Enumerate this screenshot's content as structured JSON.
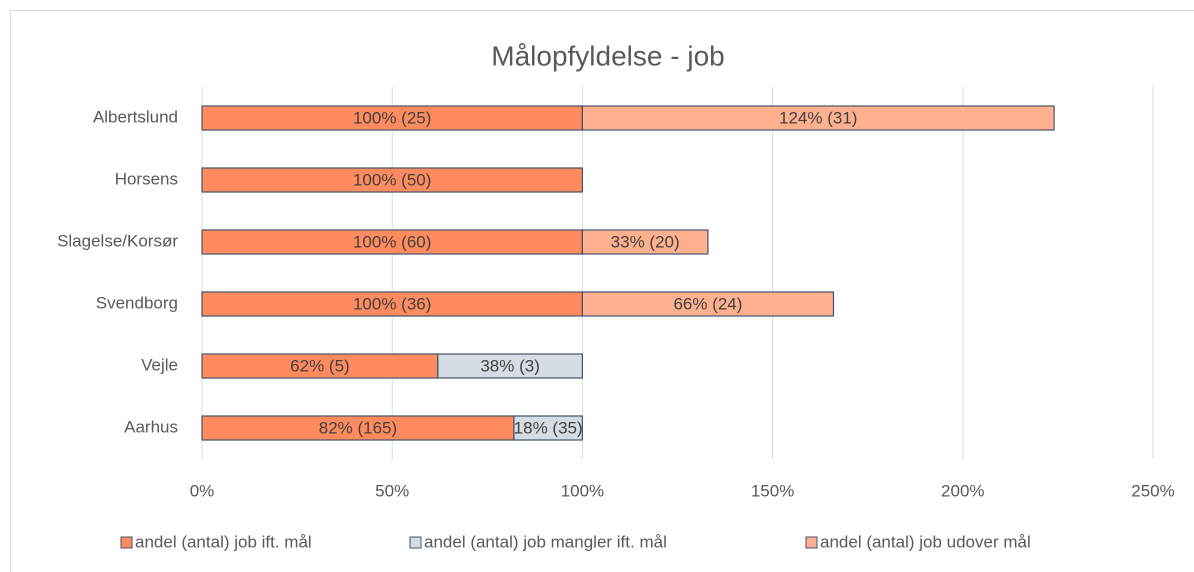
{
  "chart_data": {
    "type": "stacked-barh",
    "title": "Målopfyldelse - job",
    "categories": [
      "Albertslund",
      "Horsens",
      "Slagelse/Korsør",
      "Svendborg",
      "Vejle",
      "Aarhus"
    ],
    "series": [
      {
        "name": "andel (antal) job ift. mål",
        "color": "#ff8b5e",
        "values": [
          100,
          100,
          100,
          100,
          62,
          82
        ],
        "value_labels": [
          "100% (25)",
          "100% (50)",
          "100% (60)",
          "100% (36)",
          "62% (5)",
          "82% (165)"
        ]
      },
      {
        "name": "andel (antal) job mangler ift. mål",
        "color": "#d6dce4",
        "values": [
          null,
          null,
          null,
          null,
          38,
          18
        ],
        "value_labels": [
          null,
          null,
          null,
          null,
          "38% (3)",
          "18% (35)"
        ]
      },
      {
        "name": "andel (antal) job udover mål",
        "color": "#ffb08f",
        "values": [
          124,
          null,
          33,
          66,
          null,
          null
        ],
        "value_labels": [
          "124% (31)",
          null,
          "33% (20)",
          "66% (24)",
          null,
          null
        ]
      }
    ],
    "xlim": [
      0,
      250
    ],
    "xticks": [
      {
        "value": 0,
        "label": "0%"
      },
      {
        "value": 50,
        "label": "50%"
      },
      {
        "value": 100,
        "label": "100%"
      },
      {
        "value": 150,
        "label": "150%"
      },
      {
        "value": 200,
        "label": "200%"
      },
      {
        "value": 250,
        "label": "250%"
      }
    ],
    "grid": true,
    "legend": "bottom"
  }
}
